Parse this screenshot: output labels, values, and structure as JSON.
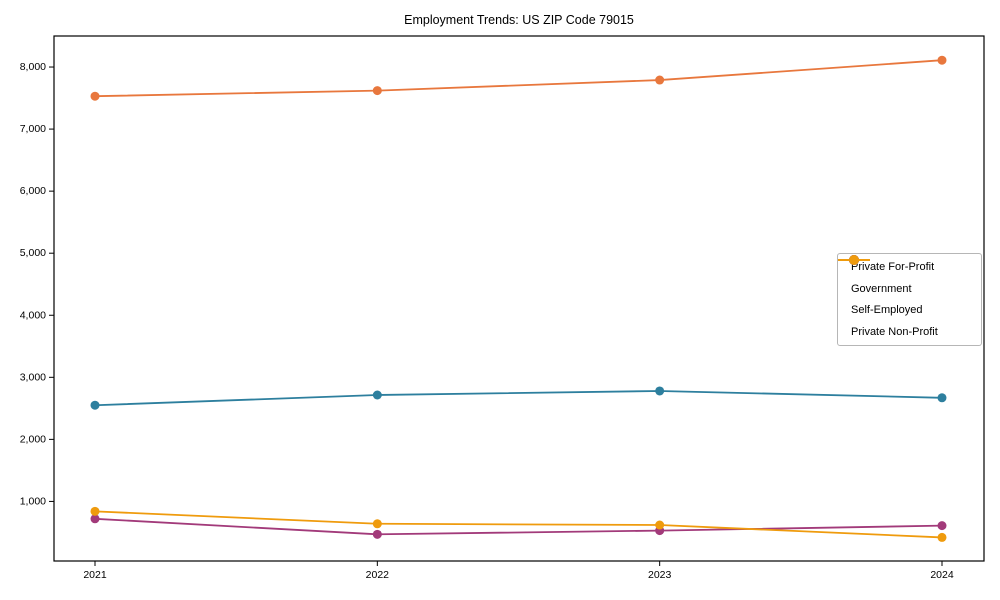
{
  "chart_data": {
    "type": "line",
    "title": "Employment Trends: US ZIP Code 79015",
    "xlabel": "",
    "ylabel": "",
    "categories": [
      "2021",
      "2022",
      "2023",
      "2024"
    ],
    "series": [
      {
        "name": "Private For-Profit",
        "color": "#e8773d",
        "values": [
          7530,
          7620,
          7790,
          8110
        ]
      },
      {
        "name": "Government",
        "color": "#2d7f9e",
        "values": [
          2550,
          2715,
          2780,
          2670
        ]
      },
      {
        "name": "Self-Employed",
        "color": "#a23a7a",
        "values": [
          720,
          470,
          530,
          610
        ]
      },
      {
        "name": "Private Non-Profit",
        "color": "#ef9b0d",
        "values": [
          840,
          640,
          620,
          420
        ]
      }
    ],
    "ylim": [
      40,
      8500
    ],
    "yticks": {
      "values": [
        1000,
        2000,
        3000,
        4000,
        5000,
        6000,
        7000,
        8000
      ],
      "labels": [
        "1,000",
        "2,000",
        "3,000",
        "4,000",
        "5,000",
        "6,000",
        "7,000",
        "8,000"
      ]
    },
    "grid": false,
    "legend_position": "center-right",
    "axis_color": "#000000",
    "background": "#ffffff"
  }
}
